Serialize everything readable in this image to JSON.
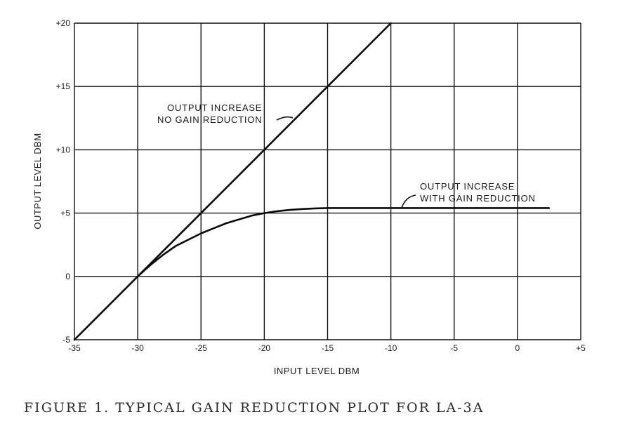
{
  "chart_data": {
    "type": "line",
    "xlabel": "INPUT LEVEL DBM",
    "ylabel": "OUTPUT LEVEL DBM",
    "xlim": [
      -35,
      5
    ],
    "ylim": [
      -5,
      20
    ],
    "grid": true,
    "x_ticks": [
      "-35",
      "-30",
      "-25",
      "-20",
      "-15",
      "-10",
      "-5",
      "0",
      "+5"
    ],
    "y_ticks": [
      "-5",
      "0",
      "+5",
      "+10",
      "+15",
      "+20"
    ],
    "series": [
      {
        "name": "OUTPUT INCREASE NO GAIN REDUCTION",
        "x": [
          -35,
          -30,
          -25,
          -20,
          -15,
          -10
        ],
        "y": [
          -5,
          0,
          5,
          10,
          15,
          20
        ]
      },
      {
        "name": "OUTPUT INCREASE WITH GAIN REDUCTION",
        "x": [
          -30,
          -29,
          -28,
          -27,
          -26,
          -25,
          -24,
          -23,
          -22,
          -21,
          -20,
          -19,
          -18,
          -17,
          -16,
          -15,
          -14,
          -12,
          -10,
          -5,
          0,
          2.5
        ],
        "y": [
          0,
          0.9,
          1.7,
          2.4,
          2.9,
          3.4,
          3.8,
          4.2,
          4.5,
          4.8,
          5.0,
          5.15,
          5.25,
          5.32,
          5.37,
          5.4,
          5.4,
          5.4,
          5.4,
          5.4,
          5.4,
          5.4
        ]
      }
    ],
    "annotations": [
      {
        "lines": [
          "OUTPUT INCREASE",
          "NO GAIN REDUCTION"
        ]
      },
      {
        "lines": [
          "OUTPUT INCREASE",
          "WITH GAIN REDUCTION"
        ]
      }
    ]
  },
  "caption": "FIGURE 1.   TYPICAL GAIN REDUCTION PLOT FOR LA-3A"
}
